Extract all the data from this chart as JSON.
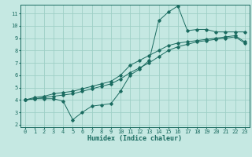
{
  "xlabel": "Humidex (Indice chaleur)",
  "xlim": [
    -0.5,
    23.5
  ],
  "ylim": [
    1.8,
    11.7
  ],
  "xticks": [
    0,
    1,
    2,
    3,
    4,
    5,
    6,
    7,
    8,
    9,
    10,
    11,
    12,
    13,
    14,
    15,
    16,
    17,
    18,
    19,
    20,
    21,
    22,
    23
  ],
  "yticks": [
    2,
    3,
    4,
    5,
    6,
    7,
    8,
    9,
    10,
    11
  ],
  "bg_color": "#c5e8e2",
  "line_color": "#1a6b60",
  "grid_color": "#9ecfc6",
  "line1_x": [
    0,
    1,
    2,
    3,
    4,
    5,
    6,
    7,
    8,
    9,
    10,
    11,
    12,
    13,
    14,
    15,
    16,
    17,
    18,
    19,
    20,
    21,
    22,
    23
  ],
  "line1_y": [
    4.0,
    4.1,
    4.1,
    4.1,
    3.9,
    2.4,
    3.0,
    3.5,
    3.6,
    3.7,
    4.7,
    6.0,
    6.5,
    7.2,
    10.4,
    11.1,
    11.6,
    9.6,
    9.7,
    9.7,
    9.5,
    9.5,
    9.5,
    9.5
  ],
  "line2_x": [
    0,
    1,
    2,
    3,
    4,
    5,
    6,
    7,
    8,
    9,
    10,
    11,
    12,
    13,
    14,
    15,
    16,
    17,
    18,
    19,
    20,
    21,
    22,
    23
  ],
  "line2_y": [
    4.0,
    4.2,
    4.3,
    4.5,
    4.6,
    4.7,
    4.9,
    5.1,
    5.3,
    5.5,
    6.0,
    6.8,
    7.2,
    7.6,
    8.0,
    8.4,
    8.6,
    8.7,
    8.8,
    8.9,
    9.0,
    9.1,
    9.2,
    8.7
  ],
  "line3_x": [
    0,
    1,
    2,
    3,
    4,
    5,
    6,
    7,
    8,
    9,
    10,
    11,
    12,
    13,
    14,
    15,
    16,
    17,
    18,
    19,
    20,
    21,
    22,
    23
  ],
  "line3_y": [
    4.0,
    4.1,
    4.2,
    4.3,
    4.4,
    4.5,
    4.7,
    4.9,
    5.1,
    5.3,
    5.7,
    6.2,
    6.6,
    7.0,
    7.5,
    8.0,
    8.3,
    8.5,
    8.7,
    8.8,
    8.9,
    9.0,
    9.1,
    8.6
  ],
  "tick_fontsize": 5.0,
  "xlabel_fontsize": 6.0
}
